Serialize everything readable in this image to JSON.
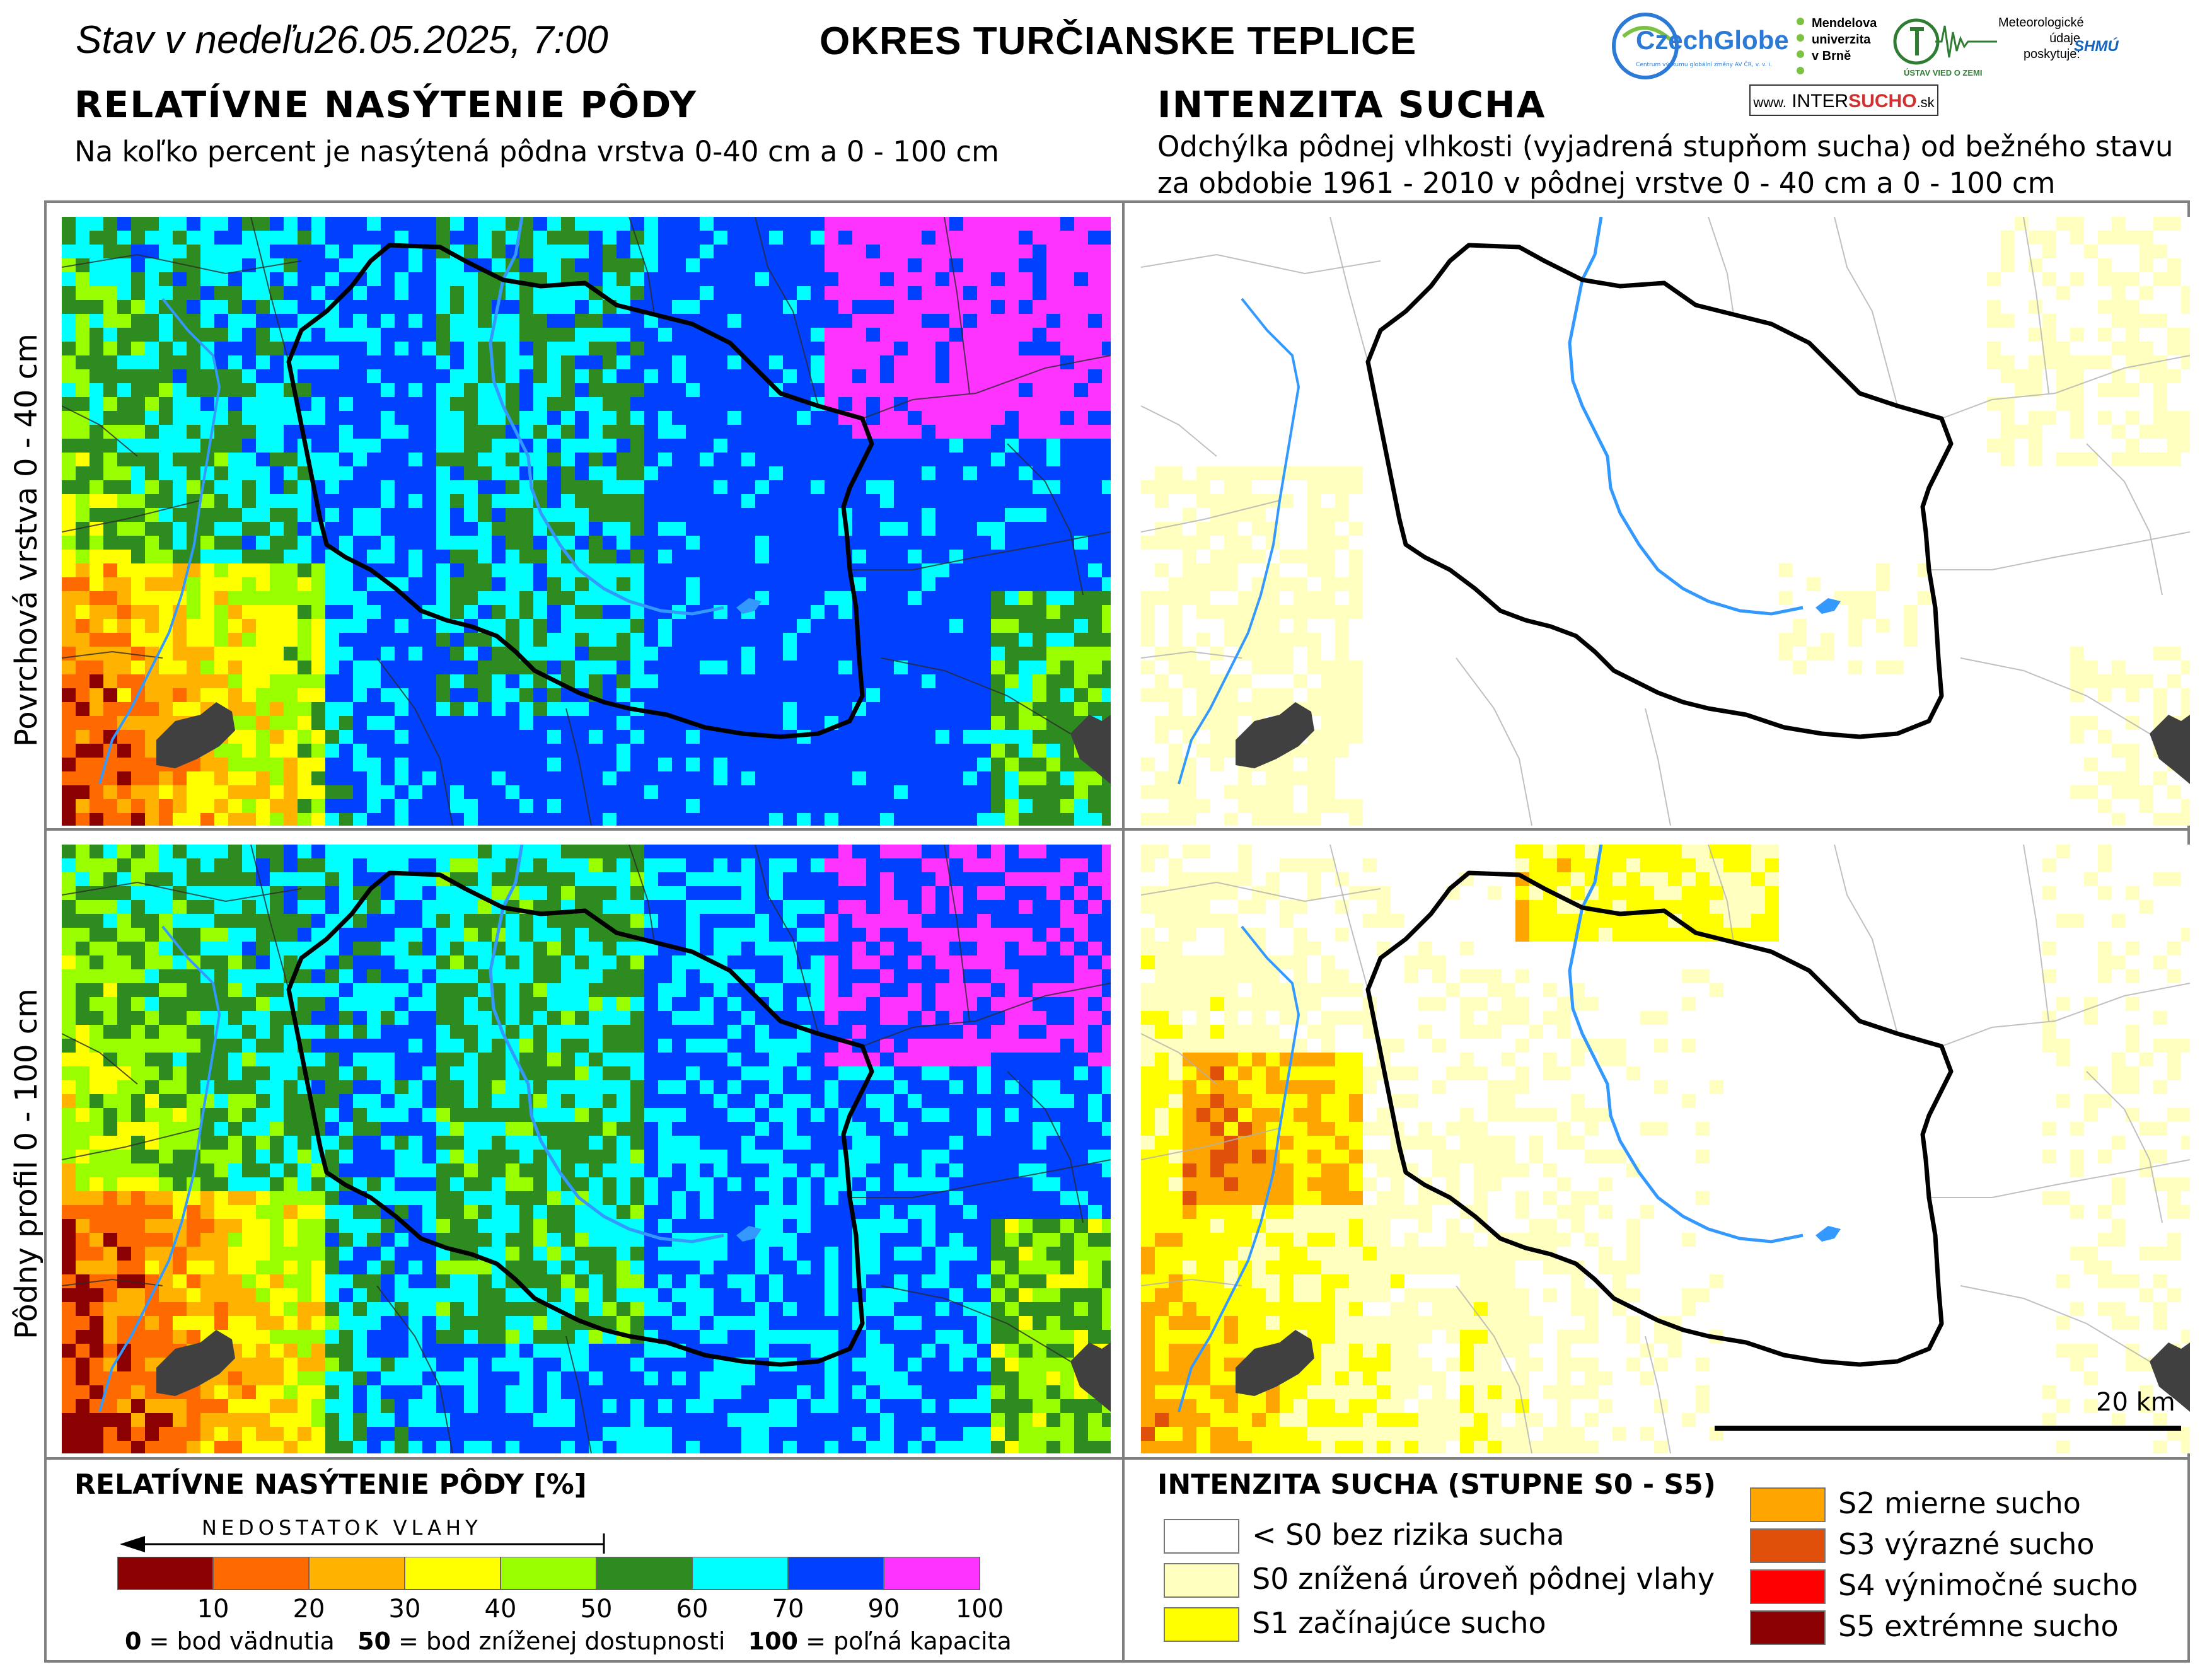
{
  "header": {
    "status_prefix": "Stav v nedeľu",
    "date_time": "26.05.2025, 7:00",
    "district": "OKRES  TURČIANSKE TEPLICE"
  },
  "left_section": {
    "title": "RELATÍVNE NASÝTENIE PÔDY",
    "subtitle": "Na koľko percent je nasýtená pôdna vrstva 0-40 cm a 0 - 100 cm"
  },
  "right_section": {
    "title": "INTENZITA SUCHA",
    "subtitle_line1": "Odchýlka pôdnej vlhkosti (vyjadrená stupňom sucha) od bežného stavu",
    "subtitle_line2": "za obdobie 1961 - 2010 v pôdnej vrstve 0 - 40 cm a 0 - 100 cm"
  },
  "row_labels": {
    "top": "Povrchová vrstva 0 - 40 cm",
    "bottom": "Pôdny profil 0 - 100 cm"
  },
  "logos": {
    "czechglobe": "CzechGlobe",
    "czechglobe_sub": "Centrum výzkumu globální změny AV ČR, v. v. i.",
    "mendel_line1": "Mendelova",
    "mendel_line2": "univerzita",
    "mendel_line3": "v Brně",
    "ustav_text": "ÚSTAV VIED O ZEMI",
    "meteo_line1": "Meteorologické",
    "meteo_line2": "údaje",
    "meteo_line3": "poskytuje:",
    "shmu": "SHMÚ",
    "intersucho_prefix": "www.",
    "intersucho_a": "INTER",
    "intersucho_b": "SUCHO",
    "intersucho_suffix": ".sk"
  },
  "scale_bar": {
    "label": "20 km"
  },
  "saturation_legend": {
    "title": "RELATÍVNE NASÝTENIE PÔDY [%]",
    "arrow_label": "NEDOSTATOK VLAHY",
    "bins": [
      {
        "from": 0,
        "to": 10,
        "color": "#8b0000"
      },
      {
        "from": 10,
        "to": 20,
        "color": "#ff6a00"
      },
      {
        "from": 20,
        "to": 30,
        "color": "#ffb300"
      },
      {
        "from": 30,
        "to": 40,
        "color": "#ffff00"
      },
      {
        "from": 40,
        "to": 50,
        "color": "#99ff00"
      },
      {
        "from": 50,
        "to": 60,
        "color": "#2e8b1f"
      },
      {
        "from": 60,
        "to": 70,
        "color": "#00ffff"
      },
      {
        "from": 70,
        "to": 90,
        "color": "#0040ff"
      },
      {
        "from": 90,
        "to": 100,
        "color": "#ff33ff"
      }
    ],
    "tick_labels": [
      "10",
      "20",
      "30",
      "40",
      "50",
      "60",
      "70",
      "90",
      "100"
    ],
    "note_0_key": "0",
    "note_0_text": " = bod vädnutia",
    "note_50_key": "50",
    "note_50_text": " = bod zníženej dostupnosti",
    "note_100_key": "100",
    "note_100_text": " = poľná kapacita"
  },
  "drought_legend": {
    "title": "INTENZITA SUCHA (STUPNE S0 - S5)",
    "items": [
      {
        "label": "< S0 bez rizika sucha",
        "color": "#ffffff"
      },
      {
        "label": "S0 znížená úroveň pôdnej vlahy",
        "color": "#ffffc0"
      },
      {
        "label": "S1 začínajúce sucho",
        "color": "#ffff00"
      },
      {
        "label": "S2 mierne sucho",
        "color": "#ffa500"
      },
      {
        "label": "S3 výrazné sucho",
        "color": "#e0500a"
      },
      {
        "label": "S4 výnimočné sucho",
        "color": "#ff0000"
      },
      {
        "label": "S5 extrémne sucho",
        "color": "#8b0000"
      }
    ]
  },
  "map_colors": {
    "district_border": "#000000",
    "river": "#3399ff",
    "city": "#404040"
  }
}
